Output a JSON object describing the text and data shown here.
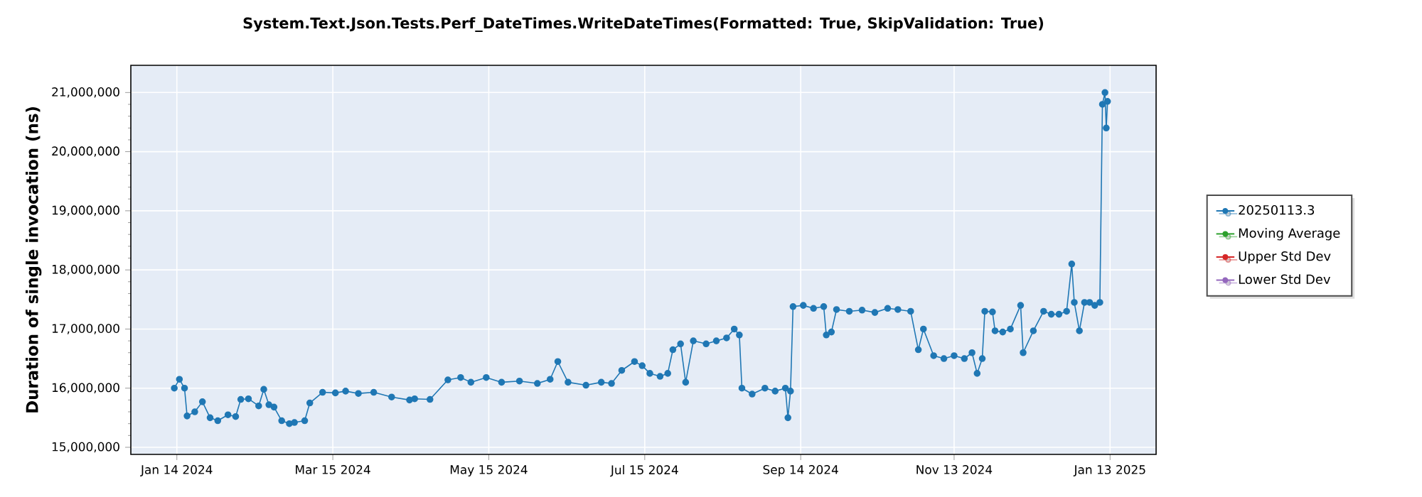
{
  "chart_data": {
    "type": "line",
    "title": "System.Text.Json.Tests.Perf_DateTimes.WriteDateTimes(Formatted: True, SkipValidation: True)",
    "ylabel": "Duration of single invocation (ns)",
    "xlim": [
      "2023-12-27",
      "2025-01-31"
    ],
    "xticks": [
      {
        "value": "2024-01-14",
        "label": "Jan 14 2024"
      },
      {
        "value": "2024-03-15",
        "label": "Mar 15 2024"
      },
      {
        "value": "2024-05-15",
        "label": "May 15 2024"
      },
      {
        "value": "2024-07-15",
        "label": "Jul 15 2024"
      },
      {
        "value": "2024-09-14",
        "label": "Sep 14 2024"
      },
      {
        "value": "2024-11-13",
        "label": "Nov 13 2024"
      },
      {
        "value": "2025-01-13",
        "label": "Jan 13 2025"
      }
    ],
    "ylim": [
      14880000,
      21460000
    ],
    "yticks": [
      {
        "value": 15000000,
        "label": "15,000,000"
      },
      {
        "value": 16000000,
        "label": "16,000,000"
      },
      {
        "value": 17000000,
        "label": "17,000,000"
      },
      {
        "value": 18000000,
        "label": "18,000,000"
      },
      {
        "value": 19000000,
        "label": "19,000,000"
      },
      {
        "value": 20000000,
        "label": "20,000,000"
      },
      {
        "value": 21000000,
        "label": "21,000,000"
      }
    ],
    "grid": true,
    "legend": "right",
    "marker": "circle",
    "line_style": "solid",
    "series": [
      {
        "name": "20250113.3",
        "color": "#1f77b4",
        "x": [
          "2024-01-13",
          "2024-01-15",
          "2024-01-17",
          "2024-01-18",
          "2024-01-21",
          "2024-01-24",
          "2024-01-27",
          "2024-01-30",
          "2024-02-03",
          "2024-02-06",
          "2024-02-08",
          "2024-02-11",
          "2024-02-15",
          "2024-02-17",
          "2024-02-19",
          "2024-02-21",
          "2024-02-24",
          "2024-02-27",
          "2024-02-29",
          "2024-03-04",
          "2024-03-06",
          "2024-03-11",
          "2024-03-16",
          "2024-03-20",
          "2024-03-25",
          "2024-03-31",
          "2024-04-07",
          "2024-04-14",
          "2024-04-16",
          "2024-04-22",
          "2024-04-29",
          "2024-05-04",
          "2024-05-08",
          "2024-05-14",
          "2024-05-20",
          "2024-05-27",
          "2024-06-03",
          "2024-06-08",
          "2024-06-11",
          "2024-06-15",
          "2024-06-22",
          "2024-06-28",
          "2024-07-02",
          "2024-07-06",
          "2024-07-11",
          "2024-07-14",
          "2024-07-17",
          "2024-07-21",
          "2024-07-24",
          "2024-07-26",
          "2024-07-29",
          "2024-07-31",
          "2024-08-03",
          "2024-08-08",
          "2024-08-12",
          "2024-08-16",
          "2024-08-19",
          "2024-08-21",
          "2024-08-22",
          "2024-08-26",
          "2024-08-31",
          "2024-09-04",
          "2024-09-08",
          "2024-09-09",
          "2024-09-10",
          "2024-09-11",
          "2024-09-15",
          "2024-09-19",
          "2024-09-23",
          "2024-09-24",
          "2024-09-26",
          "2024-09-28",
          "2024-10-03",
          "2024-10-08",
          "2024-10-13",
          "2024-10-18",
          "2024-10-22",
          "2024-10-27",
          "2024-10-30",
          "2024-11-01",
          "2024-11-05",
          "2024-11-09",
          "2024-11-13",
          "2024-11-17",
          "2024-11-20",
          "2024-11-22",
          "2024-11-24",
          "2024-11-25",
          "2024-11-28",
          "2024-11-29",
          "2024-12-02",
          "2024-12-05",
          "2024-12-09",
          "2024-12-10",
          "2024-12-14",
          "2024-12-18",
          "2024-12-21",
          "2024-12-24",
          "2024-12-27",
          "2024-12-29",
          "2024-12-30",
          "2025-01-01",
          "2025-01-03",
          "2025-01-05",
          "2025-01-07",
          "2025-01-09",
          "2025-01-10",
          "2025-01-11",
          "2025-01-11T12:00",
          "2025-01-12"
        ],
        "values": [
          16000000,
          16150000,
          16000000,
          15530000,
          15600000,
          15770000,
          15500000,
          15450000,
          15550000,
          15520000,
          15810000,
          15820000,
          15700000,
          15980000,
          15720000,
          15680000,
          15450000,
          15400000,
          15420000,
          15450000,
          15750000,
          15930000,
          15920000,
          15950000,
          15910000,
          15930000,
          15850000,
          15800000,
          15820000,
          15810000,
          16140000,
          16180000,
          16100000,
          16180000,
          16100000,
          16120000,
          16080000,
          16150000,
          16450000,
          16100000,
          16050000,
          16100000,
          16080000,
          16300000,
          16450000,
          16380000,
          16250000,
          16200000,
          16250000,
          16650000,
          16750000,
          16100000,
          16800000,
          16750000,
          16800000,
          16850000,
          17000000,
          16900000,
          16000000,
          15900000,
          16000000,
          15950000,
          16000000,
          15500000,
          15950000,
          17380000,
          17400000,
          17350000,
          17380000,
          16900000,
          16950000,
          17330000,
          17300000,
          17320000,
          17280000,
          17350000,
          17330000,
          17300000,
          16650000,
          17000000,
          16550000,
          16500000,
          16550000,
          16500000,
          16600000,
          16250000,
          16500000,
          17300000,
          17290000,
          16970000,
          16950000,
          17000000,
          17400000,
          16600000,
          16970000,
          17300000,
          17250000,
          17250000,
          17300000,
          18100000,
          17450000,
          16970000,
          17450000,
          17450000,
          17400000,
          17450000,
          20800000,
          21000000,
          20400000,
          20850000
        ]
      },
      {
        "name": "Moving Average",
        "color": "#2ca02c"
      },
      {
        "name": "Upper Std Dev",
        "color": "#d62728"
      },
      {
        "name": "Lower Std Dev",
        "color": "#9467bd"
      }
    ]
  }
}
